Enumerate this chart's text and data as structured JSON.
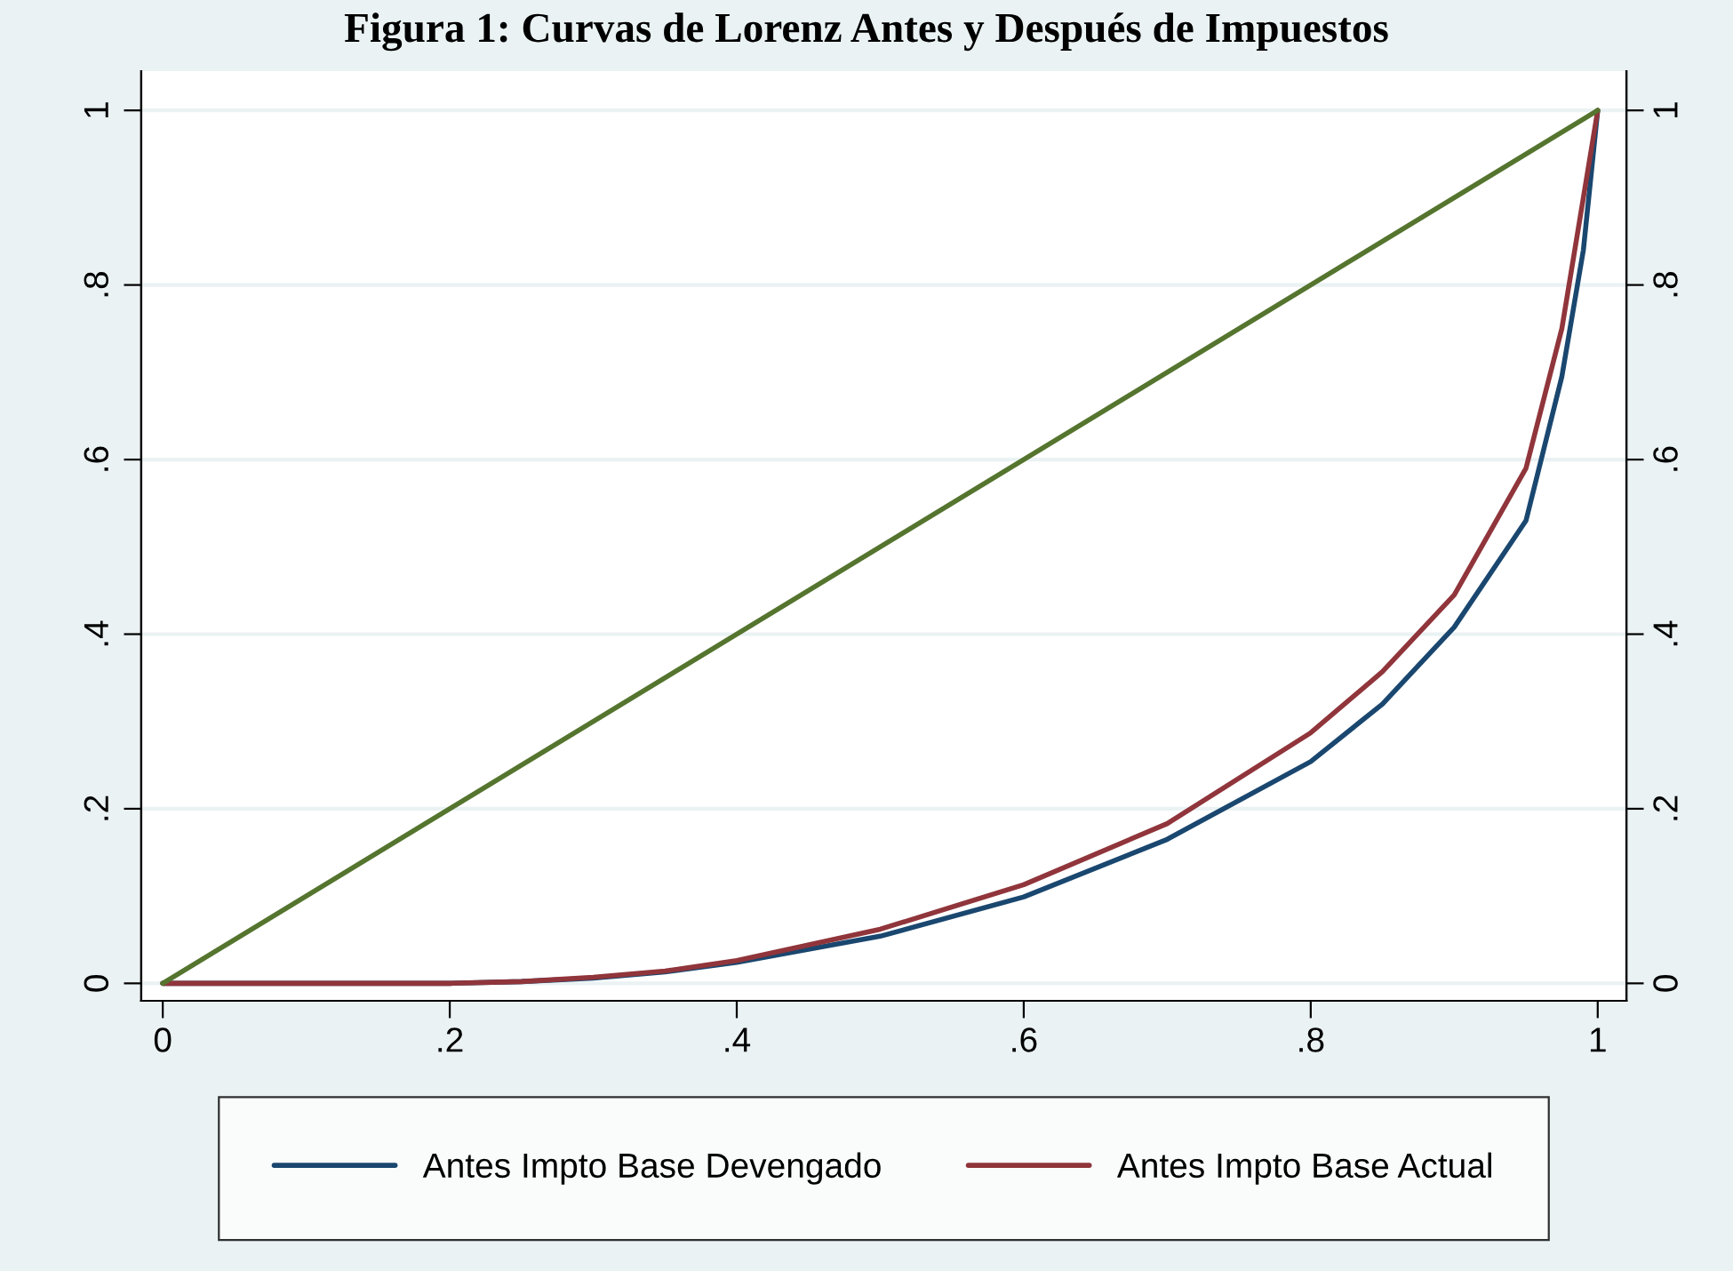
{
  "chart_data": {
    "type": "line",
    "title": "Figura 1: Curvas de Lorenz Antes y Después de Impuestos",
    "series": [
      {
        "name": "Antes Impto Base Devengado",
        "color": "#1a476f",
        "x": [
          0,
          0.1,
          0.2,
          0.25,
          0.3,
          0.35,
          0.4,
          0.5,
          0.6,
          0.7,
          0.8,
          0.85,
          0.9,
          0.95,
          0.975,
          0.99,
          1
        ],
        "values": [
          0,
          0,
          0,
          0.002,
          0.006,
          0.013,
          0.024,
          0.054,
          0.099,
          0.165,
          0.254,
          0.32,
          0.408,
          0.53,
          0.695,
          0.84,
          1
        ]
      },
      {
        "name": "Antes Impto Base Actual",
        "color": "#90353b",
        "x": [
          0,
          0.1,
          0.2,
          0.25,
          0.3,
          0.35,
          0.4,
          0.5,
          0.6,
          0.7,
          0.8,
          0.85,
          0.9,
          0.95,
          0.975,
          0.99,
          1
        ],
        "values": [
          0,
          0,
          0,
          0.002,
          0.007,
          0.014,
          0.026,
          0.062,
          0.113,
          0.183,
          0.287,
          0.357,
          0.445,
          0.59,
          0.75,
          0.9,
          1
        ]
      },
      {
        "color": "#55752f",
        "x": [
          0,
          1
        ],
        "values": [
          0,
          1
        ]
      }
    ],
    "xlim": [
      -0.015,
      1.02
    ],
    "xticks": [
      0,
      {
        "value": 0.2,
        "label": ".2"
      },
      {
        "value": 0.4,
        "label": ".4"
      },
      {
        "value": 0.6,
        "label": ".6"
      },
      {
        "value": 0.8,
        "label": ".8"
      },
      1
    ],
    "ylim": [
      -0.02,
      1.045
    ],
    "yticks": [
      0,
      {
        "value": 0.2,
        "label": ".2"
      },
      {
        "value": 0.4,
        "label": ".4"
      },
      {
        "value": 0.6,
        "label": ".6"
      },
      {
        "value": 0.8,
        "label": ".8"
      },
      1
    ],
    "y2lim": [
      -0.02,
      1.045
    ],
    "y2ticks": [
      0,
      {
        "value": 0.2,
        "label": ".2"
      },
      {
        "value": 0.4,
        "label": ".4"
      },
      {
        "value": 0.6,
        "label": ".6"
      },
      {
        "value": 0.8,
        "label": ".8"
      },
      1
    ],
    "grid": "y",
    "legend": "bottom"
  }
}
